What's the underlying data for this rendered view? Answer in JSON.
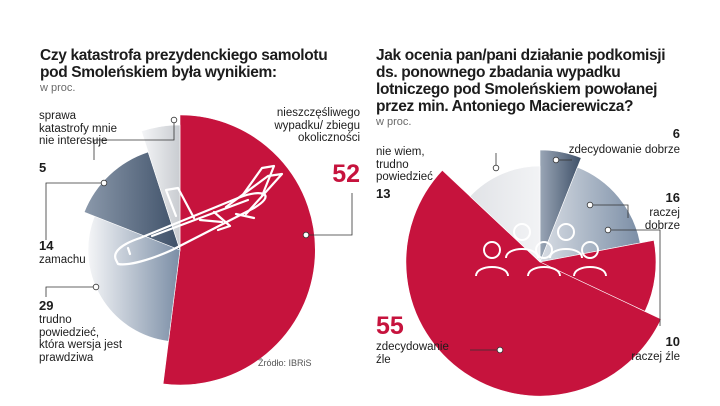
{
  "chart_data": [
    {
      "type": "pie",
      "title": "Czy katastrofa prezydenckiego samolotu pod Smoleńskiem była wynikiem:",
      "subtitle": "w proc.",
      "slices": [
        {
          "label": "nieszczęśliwego wypadku/ zbiegu okoliczności",
          "value": 52,
          "color": "#c6133d"
        },
        {
          "label": "trudno powiedzieć, która wersja jest prawdziwa",
          "value": 29,
          "color": "#7b8ea6"
        },
        {
          "label": "zamachu",
          "value": 14,
          "color": "#3e5068"
        },
        {
          "label": "sprawa katastrofy mnie nie interesuje",
          "value": 5,
          "color": "#d0d2d6"
        }
      ],
      "source": "Źródło: IBRiS"
    },
    {
      "type": "pie",
      "title": "Jak ocenia pan/pani działanie podkomisji ds. ponownego zbadania wypadku lotniczego pod Smoleńskiem powołanej przez min. Antoniego Macierewicza?",
      "subtitle": "w proc.",
      "slices": [
        {
          "label": "zdecydowanie dobrze",
          "value": 6,
          "color": "#3e5068"
        },
        {
          "label": "raczej dobrze",
          "value": 16,
          "color": "#7b8ea6"
        },
        {
          "label": "raczej źle",
          "value": 10,
          "color": "#c6133d"
        },
        {
          "label": "zdecydowanie źle",
          "value": 55,
          "color": "#c6133d"
        },
        {
          "label": "nie wiem, trudno powiedzieć",
          "value": 13,
          "color": "#d0d2d6"
        }
      ]
    }
  ],
  "icon_names": [
    "airplane-icon",
    "people-group-icon"
  ]
}
